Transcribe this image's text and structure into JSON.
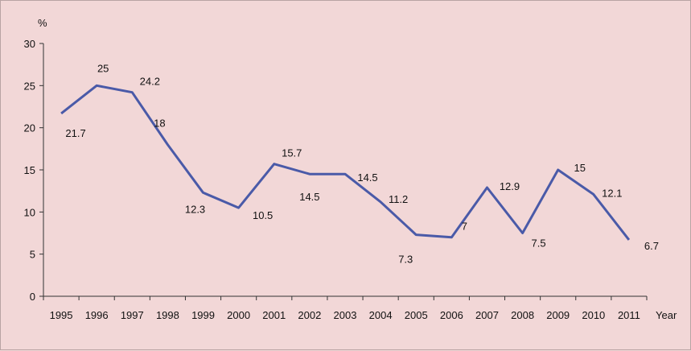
{
  "chart_data": {
    "type": "line",
    "title": "",
    "xlabel": "Year",
    "ylabel": "%",
    "ylim": [
      0,
      30
    ],
    "yticks": [
      0,
      5,
      10,
      15,
      20,
      25,
      30
    ],
    "grid": false,
    "legend": "none",
    "categories": [
      "1995",
      "1996",
      "1997",
      "1998",
      "1999",
      "2000",
      "2001",
      "2002",
      "2003",
      "2004",
      "2005",
      "2006",
      "2007",
      "2008",
      "2009",
      "2010",
      "2011"
    ],
    "series": [
      {
        "name": "",
        "color": "#4a5aa8",
        "values": [
          21.7,
          25,
          24.2,
          null,
          12.3,
          10.5,
          15.7,
          14.5,
          14.5,
          11.2,
          7.3,
          7,
          12.9,
          7.5,
          15,
          12.1,
          6.7
        ],
        "path_values": [
          21.7,
          25,
          24.2,
          18,
          12.3,
          10.5,
          15.7,
          14.5,
          14.5,
          11.2,
          7.3,
          7,
          12.9,
          7.5,
          15,
          12.1,
          6.7
        ],
        "data_labels": [
          "21.7",
          "25",
          "24.2",
          "18",
          "12.3",
          "10.5",
          "15.7",
          "14.5",
          "14.5",
          "11.2",
          "7.3",
          "7",
          "12.9",
          "7.5",
          "15",
          "12.1",
          "6.7"
        ]
      }
    ],
    "colors": {
      "background": "#f2d7d7",
      "axis": "#333333",
      "line": "#4a5aa8"
    }
  }
}
